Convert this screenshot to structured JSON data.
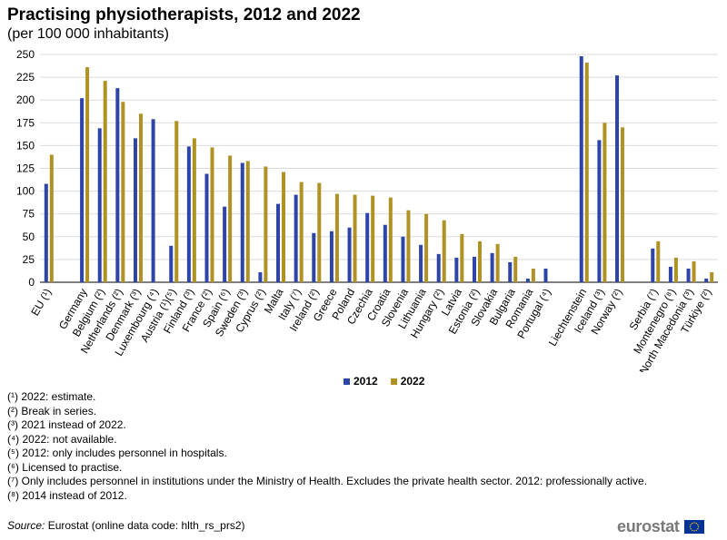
{
  "header": {
    "title": "Practising physiotherapists, 2012 and 2022",
    "subtitle": "(per 100 000 inhabitants)"
  },
  "chart_data": {
    "type": "bar",
    "categories": [
      "EU (¹)",
      "",
      "Germany",
      "Belgium (²)",
      "Netherlands (²)",
      "Denmark (³)",
      "Luxembourg (⁴)",
      "Austria (¹)(⁵)",
      "Finland (³)",
      "France (²)",
      "Spain (⁶)",
      "Sweden (³)",
      "Cyprus (²)",
      "Malta",
      "Italy (⁷)",
      "Ireland (²)",
      "Greece",
      "Poland",
      "Czechia",
      "Croatia",
      "Slovenia",
      "Lithuania",
      "Hungary (²)",
      "Latvia",
      "Estonia (²)",
      "Slovakia",
      "Bulgaria",
      "Romania",
      "Portugal (⁴)",
      "",
      "Liechtenstein",
      "Iceland (³)",
      "Norway (²)",
      "",
      "Serbia (⁷)",
      "Montenegro (⁸)",
      "North Macedonia (³)",
      "Türkiye (²)"
    ],
    "series": [
      {
        "name": "2012",
        "color": "#2e45a8",
        "values": [
          108,
          null,
          202,
          169,
          213,
          158,
          179,
          40,
          149,
          119,
          83,
          131,
          11,
          86,
          96,
          54,
          56,
          60,
          76,
          63,
          50,
          41,
          31,
          27,
          28,
          32,
          22,
          4,
          15,
          null,
          248,
          156,
          227,
          null,
          37,
          17,
          15,
          4
        ]
      },
      {
        "name": "2022",
        "color": "#b09224",
        "values": [
          140,
          null,
          236,
          221,
          198,
          185,
          null,
          177,
          158,
          148,
          139,
          133,
          127,
          121,
          110,
          109,
          97,
          96,
          95,
          93,
          79,
          75,
          68,
          53,
          45,
          42,
          28,
          15,
          null,
          null,
          241,
          175,
          170,
          null,
          45,
          27,
          23,
          11
        ]
      }
    ],
    "ylim": [
      0,
      250
    ],
    "yticks": [
      0,
      25,
      50,
      75,
      100,
      125,
      150,
      175,
      200,
      225,
      250
    ],
    "grid": true,
    "legend_position": "bottom-center"
  },
  "notes": [
    "(¹) 2022: estimate.",
    "(²) Break in series.",
    "(³) 2021 instead of 2022.",
    "(⁴) 2022: not available.",
    "(⁵) 2012: only includes personnel in hospitals.",
    "(⁶) Licensed to practise.",
    "(⁷) Only includes personnel in institutions under the Ministry of Health. Excludes the private health sector. 2012: professionally active.",
    "(⁸) 2014 instead of 2012."
  ],
  "source": {
    "label": "Source:",
    "text": " Eurostat (online data code: hlth_rs_prs2)"
  },
  "logo": {
    "text": "eurostat",
    "flag_color": "#003399",
    "star_color": "#ffcc00"
  }
}
